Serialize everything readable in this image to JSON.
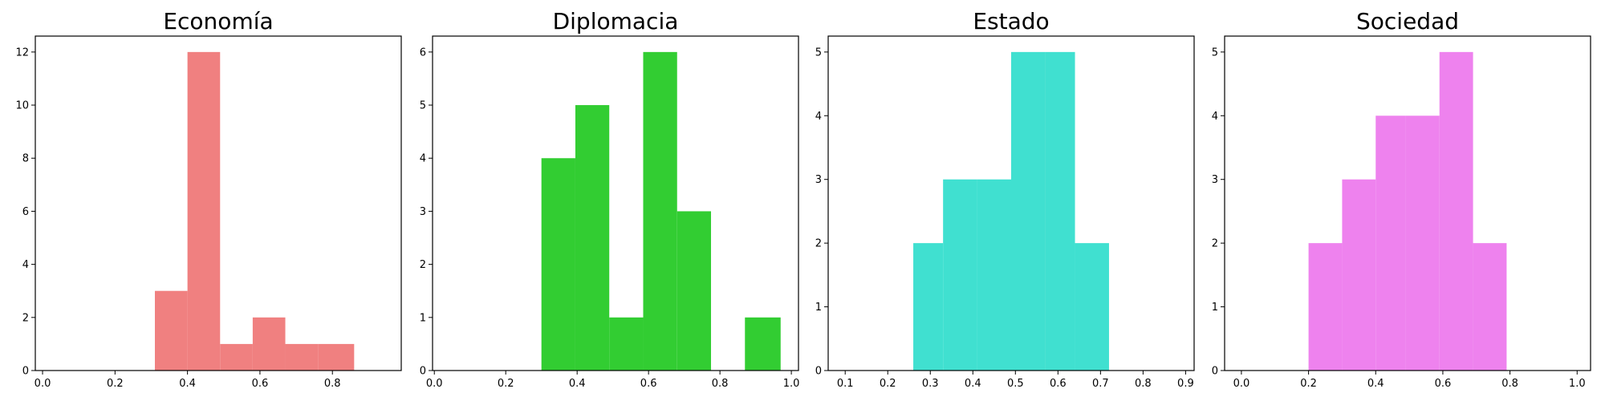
{
  "chart_data": [
    {
      "type": "bar",
      "title": "Economía",
      "color": "#f08080",
      "xlim": [
        -0.02,
        0.99
      ],
      "ylim": [
        0,
        12.6
      ],
      "xticks": [
        0.0,
        0.2,
        0.4,
        0.6,
        0.8
      ],
      "xtick_labels": [
        "0.0",
        "0.2",
        "0.4",
        "0.6",
        "0.8"
      ],
      "yticks": [
        0,
        2,
        4,
        6,
        8,
        10,
        12
      ],
      "ytick_labels": [
        "0",
        "2",
        "4",
        "6",
        "8",
        "10",
        "12"
      ],
      "bin_edges": [
        0.31,
        0.4,
        0.49,
        0.58,
        0.67,
        0.76,
        0.86
      ],
      "values": [
        3,
        12,
        1,
        2,
        1,
        1
      ]
    },
    {
      "type": "bar",
      "title": "Diplomacia",
      "color": "#32cd32",
      "xlim": [
        -0.005,
        1.02
      ],
      "ylim": [
        0,
        6.3
      ],
      "xticks": [
        0.0,
        0.2,
        0.4,
        0.6,
        0.8,
        1.0
      ],
      "xtick_labels": [
        "0.0",
        "0.2",
        "0.4",
        "0.6",
        "0.8",
        "1.0"
      ],
      "yticks": [
        0,
        1,
        2,
        3,
        4,
        5,
        6
      ],
      "ytick_labels": [
        "0",
        "1",
        "2",
        "3",
        "4",
        "5",
        "6"
      ],
      "bin_edges": [
        0.3,
        0.395,
        0.49,
        0.585,
        0.68,
        0.775,
        0.87,
        0.97
      ],
      "values": [
        4,
        5,
        1,
        6,
        3,
        0,
        1
      ]
    },
    {
      "type": "bar",
      "title": "Estado",
      "color": "#40e0d0",
      "xlim": [
        0.06,
        0.92
      ],
      "ylim": [
        0,
        5.25
      ],
      "xticks": [
        0.1,
        0.2,
        0.3,
        0.4,
        0.5,
        0.6,
        0.7,
        0.8,
        0.9
      ],
      "xtick_labels": [
        "0.1",
        "0.2",
        "0.3",
        "0.4",
        "0.5",
        "0.6",
        "0.7",
        "0.8",
        "0.9"
      ],
      "yticks": [
        0,
        1,
        2,
        3,
        4,
        5
      ],
      "ytick_labels": [
        "0",
        "1",
        "2",
        "3",
        "4",
        "5"
      ],
      "bin_edges": [
        0.26,
        0.33,
        0.41,
        0.49,
        0.57,
        0.64,
        0.72
      ],
      "values": [
        2,
        3,
        3,
        5,
        5,
        2
      ]
    },
    {
      "type": "bar",
      "title": "Sociedad",
      "color": "#ee82ee",
      "xlim": [
        -0.05,
        1.04
      ],
      "ylim": [
        0,
        5.25
      ],
      "xticks": [
        0.0,
        0.2,
        0.4,
        0.6,
        0.8,
        1.0
      ],
      "xtick_labels": [
        "0.0",
        "0.2",
        "0.4",
        "0.6",
        "0.8",
        "1.0"
      ],
      "yticks": [
        0,
        1,
        2,
        3,
        4,
        5
      ],
      "ytick_labels": [
        "0",
        "1",
        "2",
        "3",
        "4",
        "5"
      ],
      "bin_edges": [
        0.2,
        0.3,
        0.4,
        0.49,
        0.59,
        0.69,
        0.79
      ],
      "values": [
        2,
        3,
        4,
        4,
        5,
        2
      ]
    }
  ]
}
